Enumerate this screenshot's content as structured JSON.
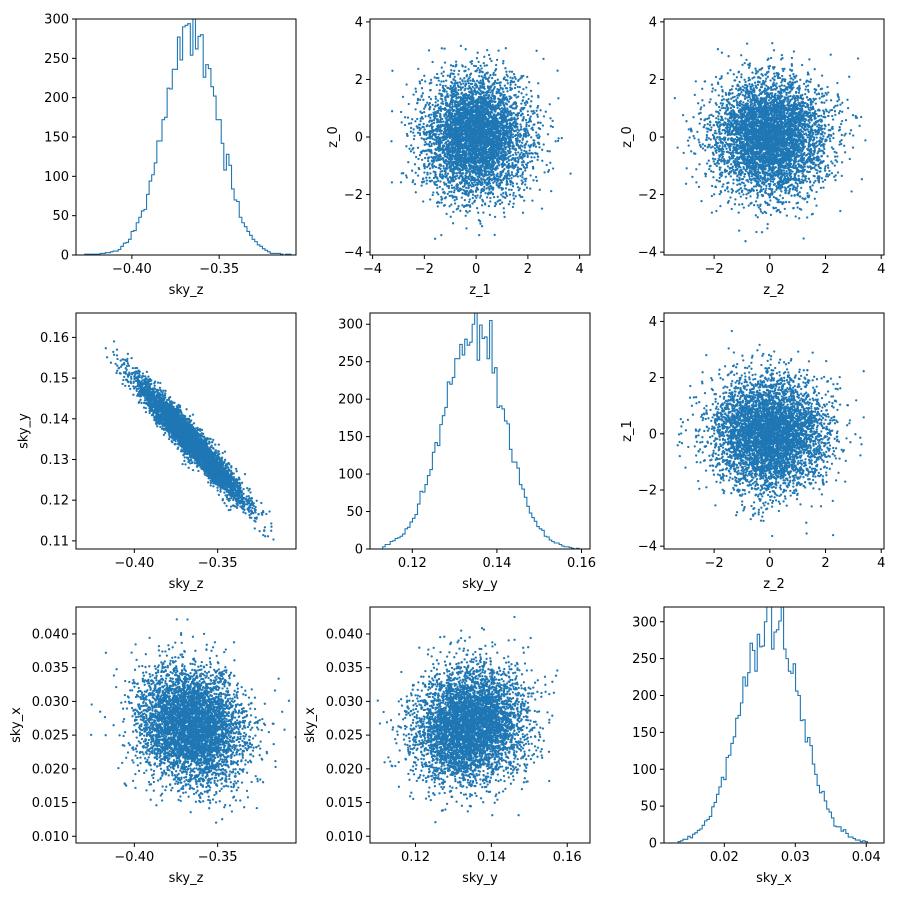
{
  "colors": {
    "series": "#1f77b4",
    "frame": "#000000",
    "background": "#ffffff"
  },
  "chart_data": [
    {
      "id": "p00",
      "type": "histogram",
      "row": 0,
      "col": 0,
      "xlabel": "sky_z",
      "ylabel": "",
      "xlim": [
        -0.432,
        -0.306
      ],
      "ylim": [
        0,
        300
      ],
      "xticks": [
        -0.4,
        -0.35
      ],
      "xticklabels": [
        "−0.40",
        "−0.35"
      ],
      "yticks": [
        0,
        50,
        100,
        150,
        200,
        250,
        300
      ],
      "yticklabels": [
        "0",
        "50",
        "100",
        "150",
        "200",
        "250",
        "300"
      ],
      "hist": {
        "mean": -0.366,
        "sd": 0.0155,
        "peak": 285,
        "range": [
          -0.427,
          -0.309
        ],
        "bins": 80
      }
    },
    {
      "id": "p01",
      "type": "scatter",
      "row": 0,
      "col": 1,
      "xlabel": "z_1",
      "ylabel": "z_0",
      "xlim": [
        -4.1,
        4.4
      ],
      "ylim": [
        -4.1,
        4.1
      ],
      "xticks": [
        -4,
        -2,
        0,
        2,
        4
      ],
      "xticklabels": [
        "−4",
        "−2",
        "0",
        "2",
        "4"
      ],
      "yticks": [
        -4,
        -2,
        0,
        2,
        4
      ],
      "yticklabels": [
        "−4",
        "−2",
        "0",
        "2",
        "4"
      ],
      "scatter": {
        "mean_x": 0,
        "mean_y": 0,
        "sd_x": 1,
        "sd_y": 1,
        "corr": 0,
        "n": 5000
      }
    },
    {
      "id": "p02",
      "type": "scatter",
      "row": 0,
      "col": 2,
      "xlabel": "z_2",
      "ylabel": "z_0",
      "xlim": [
        -3.8,
        4.1
      ],
      "ylim": [
        -4.1,
        4.1
      ],
      "xticks": [
        -2,
        0,
        2,
        4
      ],
      "xticklabels": [
        "−2",
        "0",
        "2",
        "4"
      ],
      "yticks": [
        -4,
        -2,
        0,
        2,
        4
      ],
      "yticklabels": [
        "−4",
        "−2",
        "0",
        "2",
        "4"
      ],
      "scatter": {
        "mean_x": 0,
        "mean_y": 0,
        "sd_x": 1,
        "sd_y": 1,
        "corr": 0,
        "n": 5000
      }
    },
    {
      "id": "p10",
      "type": "scatter",
      "row": 1,
      "col": 0,
      "xlabel": "sky_z",
      "ylabel": "sky_y",
      "xlim": [
        -0.435,
        -0.303
      ],
      "ylim": [
        0.108,
        0.166
      ],
      "xticks": [
        -0.4,
        -0.35
      ],
      "xticklabels": [
        "−0.40",
        "−0.35"
      ],
      "yticks": [
        0.11,
        0.12,
        0.13,
        0.14,
        0.15,
        0.16
      ],
      "yticklabels": [
        "0.11",
        "0.12",
        "0.13",
        "0.14",
        "0.15",
        "0.16"
      ],
      "scatter": {
        "mean_x": -0.366,
        "mean_y": 0.1345,
        "sd_x": 0.0155,
        "sd_y": 0.0072,
        "corr": -0.96,
        "n": 5000
      }
    },
    {
      "id": "p11",
      "type": "histogram",
      "row": 1,
      "col": 1,
      "xlabel": "sky_y",
      "ylabel": "",
      "xlim": [
        0.11,
        0.162
      ],
      "ylim": [
        0,
        315
      ],
      "xticks": [
        0.12,
        0.14,
        0.16
      ],
      "xticklabels": [
        "0.12",
        "0.14",
        "0.16"
      ],
      "yticks": [
        0,
        50,
        100,
        150,
        200,
        250,
        300
      ],
      "yticklabels": [
        "0",
        "50",
        "100",
        "150",
        "200",
        "250",
        "300"
      ],
      "hist": {
        "mean": 0.1345,
        "sd": 0.0072,
        "peak": 298,
        "range": [
          0.113,
          0.16
        ],
        "bins": 80
      }
    },
    {
      "id": "p12",
      "type": "scatter",
      "row": 1,
      "col": 2,
      "xlabel": "z_2",
      "ylabel": "z_1",
      "xlim": [
        -3.8,
        4.1
      ],
      "ylim": [
        -4.1,
        4.3
      ],
      "xticks": [
        -2,
        0,
        2,
        4
      ],
      "xticklabels": [
        "−2",
        "0",
        "2",
        "4"
      ],
      "yticks": [
        -4,
        -2,
        0,
        2,
        4
      ],
      "yticklabels": [
        "−4",
        "−2",
        "0",
        "2",
        "4"
      ],
      "scatter": {
        "mean_x": 0,
        "mean_y": 0,
        "sd_x": 1,
        "sd_y": 1,
        "corr": 0,
        "n": 5000
      }
    },
    {
      "id": "p20",
      "type": "scatter",
      "row": 2,
      "col": 0,
      "xlabel": "sky_z",
      "ylabel": "sky_x",
      "xlim": [
        -0.435,
        -0.303
      ],
      "ylim": [
        0.009,
        0.044
      ],
      "xticks": [
        -0.4,
        -0.35
      ],
      "xticklabels": [
        "−0.40",
        "−0.35"
      ],
      "yticks": [
        0.01,
        0.015,
        0.02,
        0.025,
        0.03,
        0.035,
        0.04
      ],
      "yticklabels": [
        "0.010",
        "0.015",
        "0.020",
        "0.025",
        "0.030",
        "0.035",
        "0.040"
      ],
      "scatter": {
        "mean_x": -0.366,
        "mean_y": 0.0265,
        "sd_x": 0.0155,
        "sd_y": 0.0042,
        "corr": -0.15,
        "n": 5000
      }
    },
    {
      "id": "p21",
      "type": "scatter",
      "row": 2,
      "col": 1,
      "xlabel": "sky_y",
      "ylabel": "sky_x",
      "xlim": [
        0.108,
        0.166
      ],
      "ylim": [
        0.009,
        0.044
      ],
      "xticks": [
        0.12,
        0.14,
        0.16
      ],
      "xticklabels": [
        "0.12",
        "0.14",
        "0.16"
      ],
      "yticks": [
        0.01,
        0.015,
        0.02,
        0.025,
        0.03,
        0.035,
        0.04
      ],
      "yticklabels": [
        "0.010",
        "0.015",
        "0.020",
        "0.025",
        "0.030",
        "0.035",
        "0.040"
      ],
      "scatter": {
        "mean_x": 0.1345,
        "mean_y": 0.0265,
        "sd_x": 0.0072,
        "sd_y": 0.0042,
        "corr": 0.1,
        "n": 5000
      }
    },
    {
      "id": "p22",
      "type": "histogram",
      "row": 2,
      "col": 2,
      "xlabel": "sky_x",
      "ylabel": "",
      "xlim": [
        0.0115,
        0.0425
      ],
      "ylim": [
        0,
        320
      ],
      "xticks": [
        0.02,
        0.03,
        0.04
      ],
      "xticklabels": [
        "0.02",
        "0.03",
        "0.04"
      ],
      "yticks": [
        0,
        50,
        100,
        150,
        200,
        250,
        300
      ],
      "yticklabels": [
        "0",
        "50",
        "100",
        "150",
        "200",
        "250",
        "300"
      ],
      "hist": {
        "mean": 0.0265,
        "sd": 0.0042,
        "peak": 307,
        "range": [
          0.0135,
          0.0405
        ],
        "bins": 80
      }
    }
  ]
}
